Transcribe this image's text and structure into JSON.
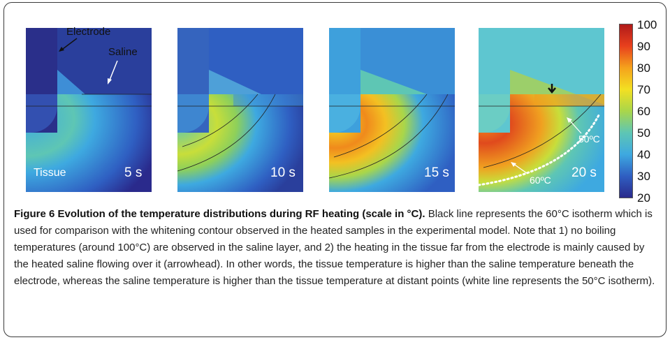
{
  "figure": {
    "panels": [
      {
        "time": "5 s"
      },
      {
        "time": "10 s"
      },
      {
        "time": "15 s"
      },
      {
        "time": "20 s"
      }
    ],
    "labels": {
      "electrode": "Electrode",
      "saline": "Saline",
      "tissue": "Tissue",
      "iso60": "60ºC",
      "iso50": "50ºC"
    },
    "colorbar": {
      "ticks": [
        "100",
        "90",
        "80",
        "70",
        "60",
        "50",
        "40",
        "30",
        "20"
      ],
      "min": 20,
      "max": 100,
      "colormap": [
        "#2a2a8c",
        "#2f5fc2",
        "#3ea9e0",
        "#5ec6b4",
        "#a9d64a",
        "#f3e022",
        "#f5a21c",
        "#e8401d",
        "#b01a1a"
      ]
    }
  },
  "caption": {
    "title": "Figure 6 Evolution of the temperature distributions during RF heating (scale in °C).",
    "body": " Black line represents the 60°C isotherm which is used for comparison with the whitening contour observed in the heated samples in the experimental model. Note that 1) no boiling temperatures (around 100°C) are observed in the saline layer, and 2) the heating in the tissue far from the electrode is mainly caused by the heated saline flowing over it (arrowhead). In other words, the tissue temperature is higher than the saline temperature beneath the electrode, whereas the saline temperature is higher than the tissue temperature at distant points (white line represents the 50°C isotherm)."
  }
}
